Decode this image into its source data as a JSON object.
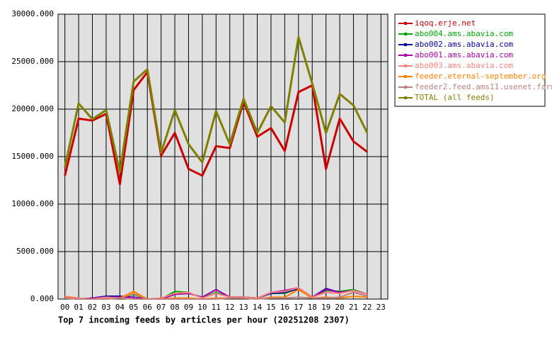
{
  "chart_data": {
    "type": "line",
    "title": "Top 7 incoming feeds by articles per hour (20251208 2307)",
    "categories": [
      "00",
      "01",
      "02",
      "03",
      "04",
      "05",
      "06",
      "07",
      "08",
      "09",
      "10",
      "11",
      "12",
      "13",
      "14",
      "15",
      "16",
      "17",
      "18",
      "19",
      "20",
      "21",
      "22",
      "23"
    ],
    "ylim": [
      0,
      30000
    ],
    "yticks": [
      {
        "value": 0,
        "label": "0.000"
      },
      {
        "value": 5000,
        "label": "5000.000"
      },
      {
        "value": 10000,
        "label": "10000.000"
      },
      {
        "value": 15000,
        "label": "15000.000"
      },
      {
        "value": 20000,
        "label": "20000.000"
      },
      {
        "value": 25000,
        "label": "25000.000"
      },
      {
        "value": 30000,
        "label": "30000.000"
      }
    ],
    "grid": true,
    "legend": "right",
    "series": [
      {
        "name": "iqoq.erje.net",
        "color": "#cc0000",
        "values": [
          13000,
          19000,
          18800,
          19500,
          12100,
          22000,
          23900,
          15100,
          17500,
          13700,
          13000,
          16100,
          15900,
          20800,
          17100,
          18000,
          15600,
          21800,
          22500,
          13700,
          19000,
          16600,
          15500,
          null
        ]
      },
      {
        "name": "abo004.ams.abavia.com",
        "color": "#00aa00",
        "values": [
          100,
          0,
          100,
          200,
          100,
          500,
          0,
          0,
          800,
          700,
          100,
          700,
          200,
          200,
          100,
          600,
          600,
          1100,
          200,
          900,
          800,
          1000,
          500,
          null
        ]
      },
      {
        "name": "abo002.ams.abavia.com",
        "color": "#0000aa",
        "values": [
          100,
          0,
          100,
          300,
          300,
          200,
          0,
          0,
          500,
          600,
          200,
          1000,
          200,
          200,
          100,
          600,
          700,
          1100,
          200,
          1100,
          700,
          900,
          500,
          null
        ]
      },
      {
        "name": "abo001.ams.abavia.com",
        "color": "#aa00aa",
        "values": [
          100,
          0,
          100,
          200,
          200,
          200,
          0,
          0,
          500,
          600,
          200,
          1000,
          200,
          200,
          100,
          700,
          900,
          1200,
          200,
          1000,
          700,
          900,
          500,
          null
        ]
      },
      {
        "name": "abo003.ams.abavia.com",
        "color": "#ff8080",
        "values": [
          300,
          100,
          0,
          200,
          100,
          600,
          0,
          100,
          600,
          700,
          100,
          600,
          200,
          200,
          100,
          700,
          800,
          1200,
          200,
          700,
          600,
          900,
          500,
          null
        ]
      },
      {
        "name": "feeder.eternal-september.org",
        "color": "#ff8000",
        "values": [
          200,
          0,
          0,
          0,
          100,
          800,
          0,
          0,
          100,
          100,
          0,
          100,
          100,
          100,
          0,
          200,
          200,
          1000,
          100,
          200,
          100,
          300,
          200,
          null
        ]
      },
      {
        "name": "feeder2.feed.ams11.usenet.farm",
        "color": "#c08080",
        "values": [
          100,
          0,
          0,
          0,
          100,
          0,
          0,
          0,
          0,
          0,
          0,
          0,
          100,
          100,
          0,
          100,
          100,
          200,
          100,
          100,
          200,
          700,
          300,
          null
        ]
      },
      {
        "name": "TOTAL (all feeds)",
        "color": "#808000",
        "values": [
          13900,
          20600,
          18950,
          19900,
          13400,
          22900,
          24200,
          15400,
          19900,
          16300,
          14400,
          19800,
          16300,
          21100,
          17500,
          20300,
          18600,
          27600,
          22700,
          17500,
          21600,
          20400,
          17500,
          null
        ]
      }
    ]
  }
}
